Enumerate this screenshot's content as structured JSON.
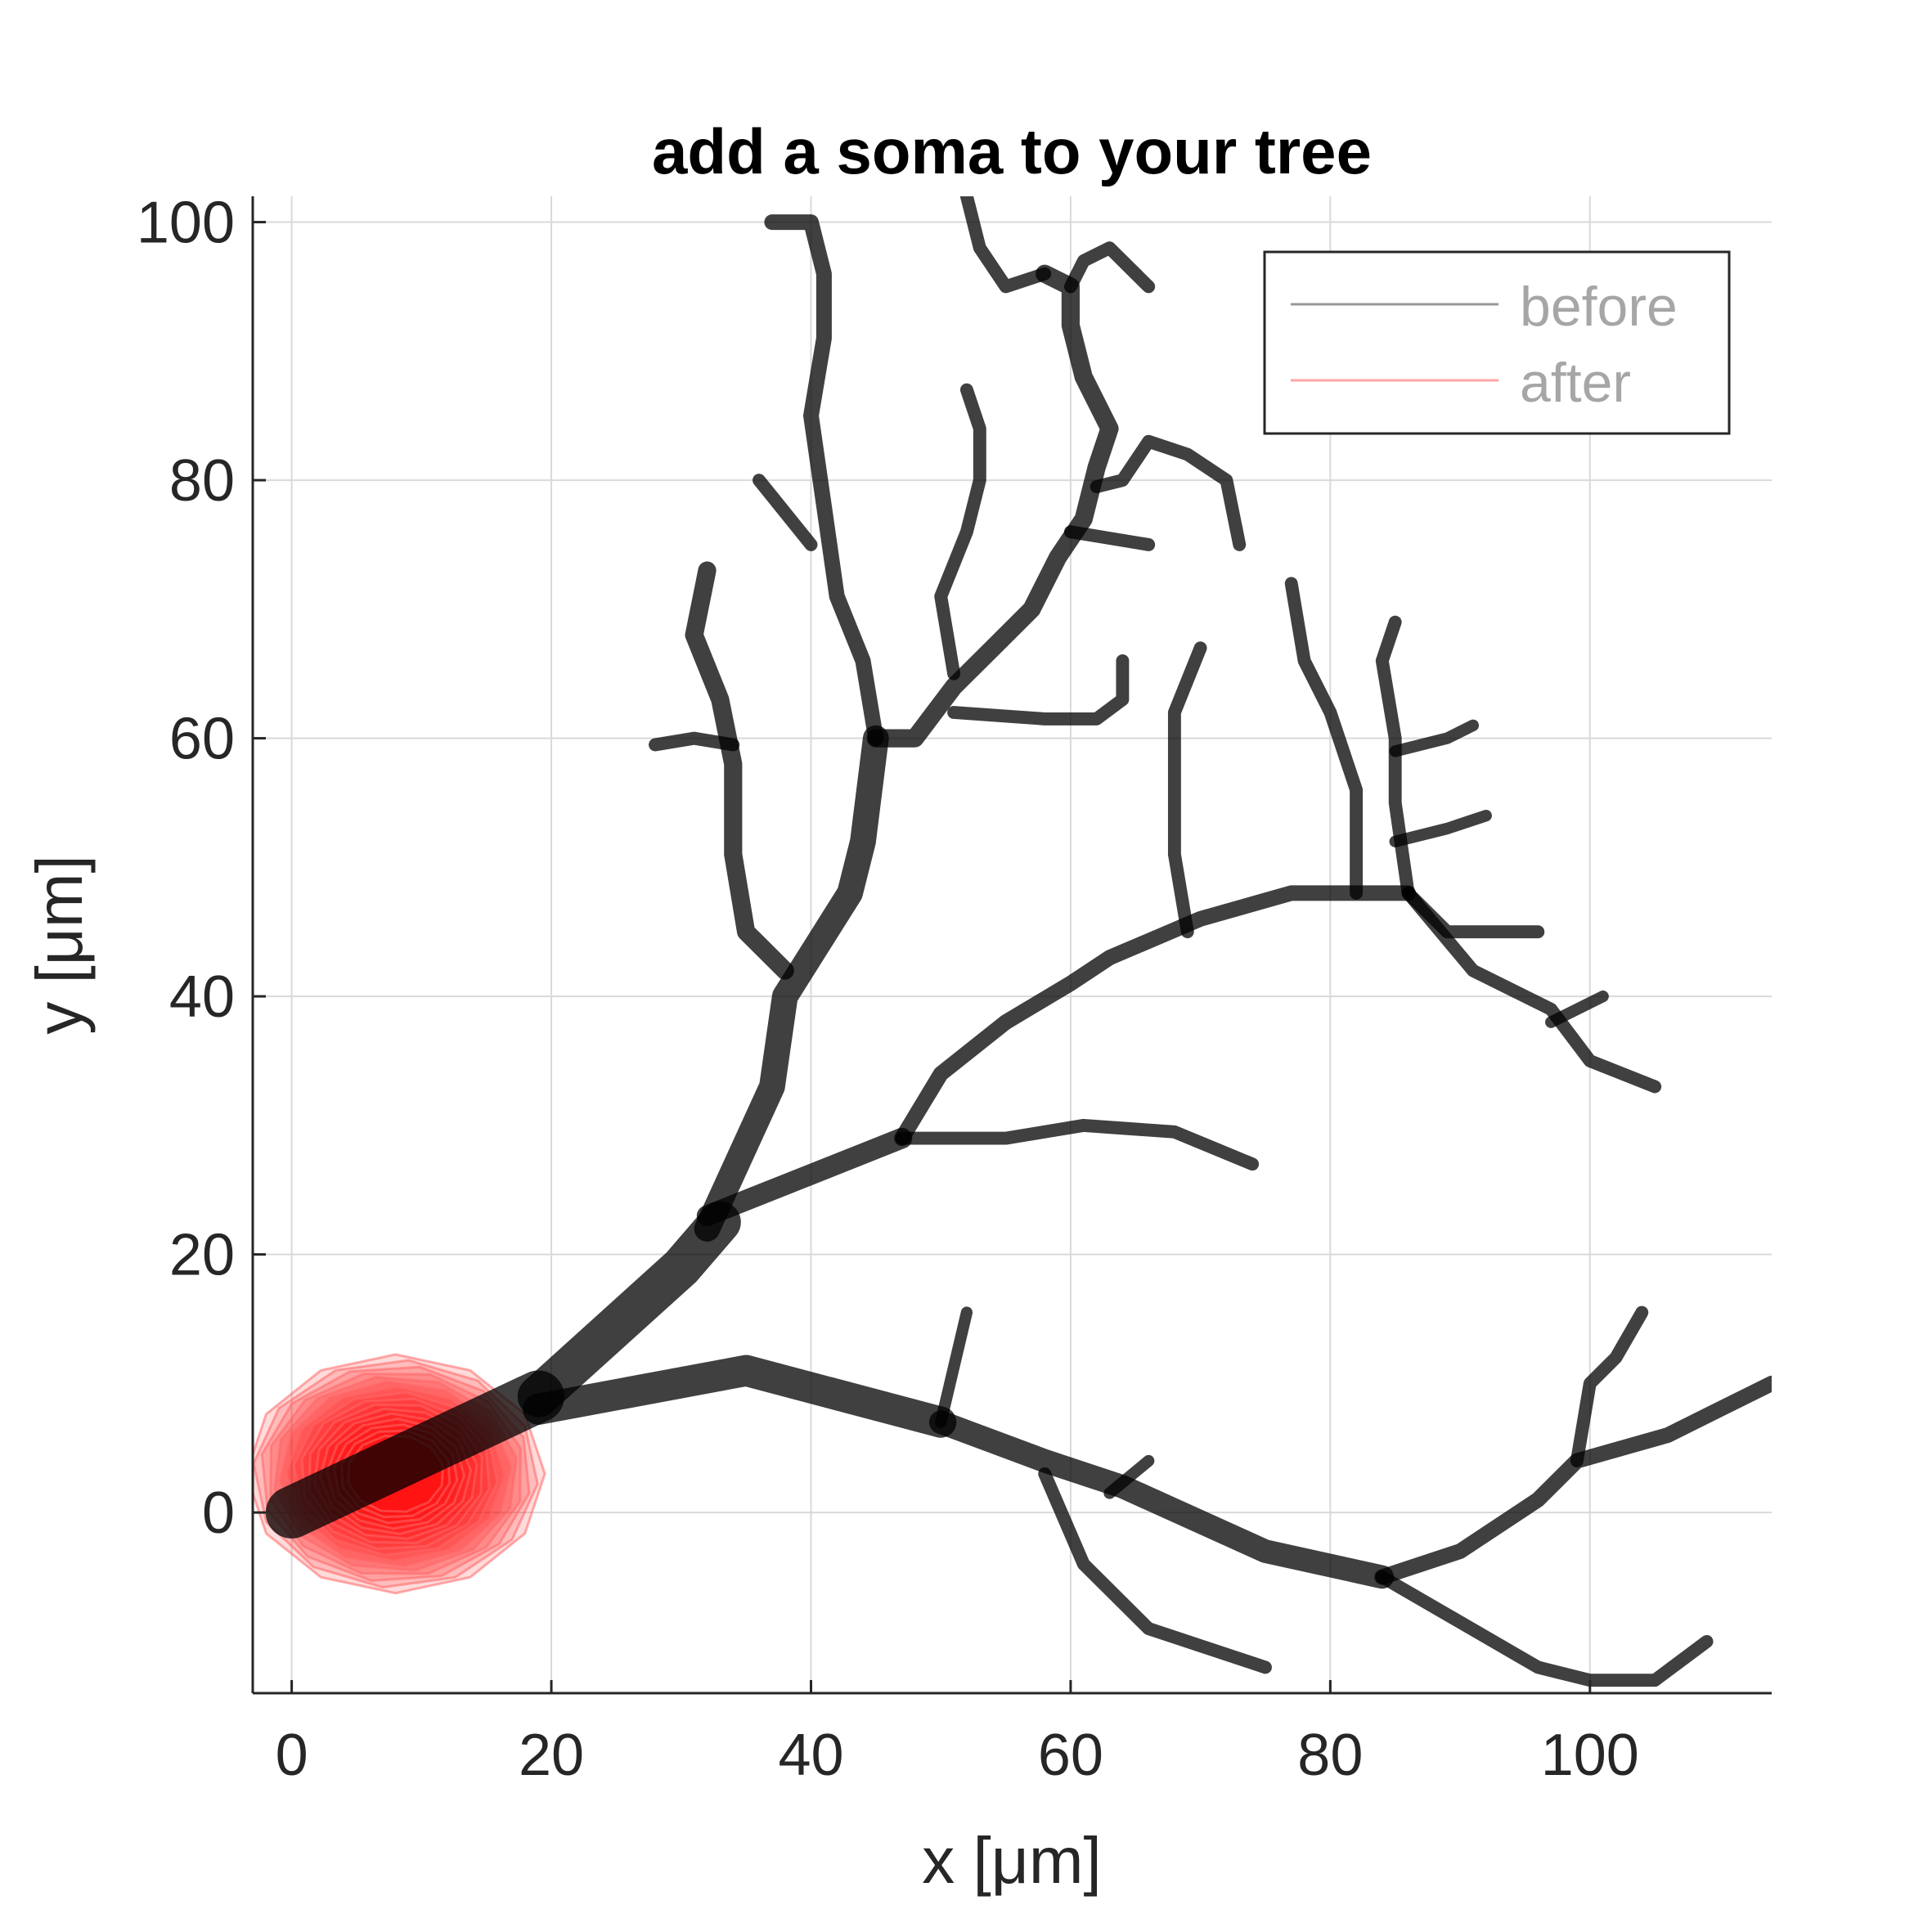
{
  "chart_data": {
    "type": "line",
    "title": "add a soma to your tree",
    "xlabel": "x [μm]",
    "ylabel": "y [μm]",
    "xlim": [
      -3,
      114
    ],
    "ylim": [
      -14,
      102
    ],
    "xticks": [
      0,
      20,
      40,
      60,
      80,
      100
    ],
    "yticks": [
      0,
      20,
      40,
      60,
      80,
      100
    ],
    "xtick_labels": [
      "0",
      "20",
      "40",
      "60",
      "80",
      "100"
    ],
    "ytick_labels": [
      "0",
      "20",
      "40",
      "60",
      "80",
      "100"
    ],
    "grid": true,
    "legend_position": "top-right",
    "colors": {
      "before": "#000000",
      "after": "#ff0000",
      "grid": "#d9d9d9",
      "axis": "#262626"
    },
    "legend": [
      {
        "name": "before",
        "color": "#000000"
      },
      {
        "name": "after",
        "color": "#ff0000"
      }
    ],
    "soma": {
      "series": "after",
      "x_range": [
        -3,
        20
      ],
      "y_range": [
        -6,
        12.5
      ],
      "center": [
        8,
        3
      ]
    },
    "branches": [
      {
        "width": 4.0,
        "points": [
          [
            0,
            0
          ],
          [
            19,
            9
          ]
        ]
      },
      {
        "width": 3.2,
        "points": [
          [
            19,
            9
          ],
          [
            30,
            19
          ],
          [
            33,
            22.5
          ]
        ]
      },
      {
        "width": 2.4,
        "points": [
          [
            19,
            8
          ],
          [
            35,
            11
          ],
          [
            50,
            7
          ]
        ]
      },
      {
        "width": 1.8,
        "points": [
          [
            50,
            7
          ],
          [
            58,
            4
          ],
          [
            64,
            2
          ],
          [
            75,
            -3
          ],
          [
            84,
            -5
          ]
        ]
      },
      {
        "width": 1.2,
        "points": [
          [
            84,
            -5
          ],
          [
            90,
            -3
          ],
          [
            96,
            1
          ],
          [
            99,
            4
          ],
          [
            106,
            6
          ],
          [
            110,
            8
          ],
          [
            114,
            10
          ]
        ]
      },
      {
        "width": 1.0,
        "points": [
          [
            99,
            4
          ],
          [
            100,
            10
          ],
          [
            102,
            12
          ],
          [
            104,
            15.5
          ]
        ]
      },
      {
        "width": 1.0,
        "points": [
          [
            84,
            -5
          ],
          [
            96,
            -12
          ],
          [
            100,
            -13
          ],
          [
            105,
            -13
          ],
          [
            109,
            -10
          ]
        ]
      },
      {
        "width": 1.0,
        "points": [
          [
            58,
            3
          ],
          [
            61,
            -4
          ],
          [
            66,
            -9
          ],
          [
            75,
            -12
          ]
        ]
      },
      {
        "width": 0.9,
        "points": [
          [
            50,
            7
          ],
          [
            52,
            15.5
          ]
        ]
      },
      {
        "width": 0.9,
        "points": [
          [
            63,
            1.5
          ],
          [
            66,
            4
          ]
        ]
      },
      {
        "width": 2.0,
        "points": [
          [
            32,
            22
          ],
          [
            37,
            33
          ],
          [
            38,
            40
          ],
          [
            43,
            48
          ],
          [
            44,
            52
          ],
          [
            45,
            60
          ]
        ]
      },
      {
        "width": 1.6,
        "points": [
          [
            32,
            23
          ],
          [
            47,
            29
          ]
        ]
      },
      {
        "width": 1.2,
        "points": [
          [
            47,
            29
          ],
          [
            50,
            34
          ],
          [
            55,
            38
          ],
          [
            60,
            41
          ],
          [
            63,
            43
          ],
          [
            70,
            46
          ],
          [
            77,
            48
          ],
          [
            82,
            48
          ],
          [
            86,
            48
          ]
        ]
      },
      {
        "width": 1.0,
        "points": [
          [
            86,
            48
          ],
          [
            91,
            42
          ],
          [
            97,
            39
          ],
          [
            100,
            35
          ],
          [
            105,
            33
          ]
        ]
      },
      {
        "width": 0.9,
        "points": [
          [
            97,
            38
          ],
          [
            101,
            40
          ]
        ]
      },
      {
        "width": 1.0,
        "points": [
          [
            86,
            48
          ],
          [
            89,
            45
          ],
          [
            96,
            45
          ]
        ]
      },
      {
        "width": 1.0,
        "points": [
          [
            86,
            48
          ],
          [
            85,
            55
          ],
          [
            85,
            60
          ],
          [
            84,
            66
          ],
          [
            85,
            69
          ]
        ]
      },
      {
        "width": 0.9,
        "points": [
          [
            85,
            59
          ],
          [
            89,
            60
          ],
          [
            91,
            61
          ]
        ]
      },
      {
        "width": 0.9,
        "points": [
          [
            85,
            52
          ],
          [
            89,
            53
          ],
          [
            92,
            54
          ]
        ]
      },
      {
        "width": 1.0,
        "points": [
          [
            82,
            48
          ],
          [
            82,
            56
          ],
          [
            80,
            62
          ],
          [
            78,
            66
          ],
          [
            77,
            72
          ]
        ]
      },
      {
        "width": 1.0,
        "points": [
          [
            69,
            45
          ],
          [
            68,
            51
          ],
          [
            68,
            57
          ],
          [
            68,
            62
          ],
          [
            70,
            67
          ]
        ]
      },
      {
        "width": 1.0,
        "points": [
          [
            47,
            29
          ],
          [
            55,
            29
          ],
          [
            61,
            30
          ],
          [
            68,
            29.5
          ],
          [
            74,
            27
          ]
        ]
      },
      {
        "width": 1.4,
        "points": [
          [
            38,
            42
          ],
          [
            35,
            45
          ],
          [
            34,
            51
          ],
          [
            34,
            58
          ],
          [
            33,
            63
          ],
          [
            31,
            68
          ],
          [
            32,
            73
          ]
        ]
      },
      {
        "width": 1.0,
        "points": [
          [
            34,
            59.5
          ],
          [
            31,
            60
          ],
          [
            28,
            59.5
          ]
        ]
      },
      {
        "width": 1.4,
        "points": [
          [
            45,
            60
          ],
          [
            48,
            60
          ],
          [
            51,
            64
          ],
          [
            54,
            67
          ],
          [
            57,
            70
          ],
          [
            59,
            74
          ],
          [
            61,
            77
          ],
          [
            62,
            81
          ],
          [
            63,
            84
          ],
          [
            61,
            88
          ],
          [
            60,
            92
          ],
          [
            60,
            95
          ],
          [
            58,
            96
          ]
        ]
      },
      {
        "width": 1.0,
        "points": [
          [
            58,
            96
          ],
          [
            55,
            95
          ],
          [
            53,
            98
          ],
          [
            52,
            102
          ]
        ]
      },
      {
        "width": 1.0,
        "points": [
          [
            60,
            95
          ],
          [
            61,
            97
          ],
          [
            63,
            98
          ],
          [
            66,
            95
          ]
        ]
      },
      {
        "width": 1.2,
        "points": [
          [
            45,
            60
          ],
          [
            44,
            66
          ],
          [
            42,
            71
          ],
          [
            41,
            78
          ],
          [
            40,
            85
          ],
          [
            41,
            91
          ],
          [
            41,
            96
          ],
          [
            40,
            100
          ],
          [
            37,
            100
          ]
        ]
      },
      {
        "width": 1.0,
        "points": [
          [
            40,
            75
          ],
          [
            36,
            80
          ]
        ]
      },
      {
        "width": 1.0,
        "points": [
          [
            51,
            65
          ],
          [
            50,
            71
          ],
          [
            52,
            76
          ],
          [
            53,
            80
          ],
          [
            53,
            84
          ],
          [
            52,
            87
          ]
        ]
      },
      {
        "width": 1.0,
        "points": [
          [
            51,
            62
          ],
          [
            58,
            61.5
          ],
          [
            62,
            61.5
          ],
          [
            64,
            63
          ],
          [
            64,
            66
          ]
        ]
      },
      {
        "width": 1.0,
        "points": [
          [
            60,
            76
          ],
          [
            66,
            75
          ]
        ]
      },
      {
        "width": 1.0,
        "points": [
          [
            62,
            79.5
          ],
          [
            64,
            80
          ],
          [
            66,
            83
          ],
          [
            69,
            82
          ],
          [
            72,
            80
          ],
          [
            73,
            75
          ]
        ]
      }
    ]
  }
}
